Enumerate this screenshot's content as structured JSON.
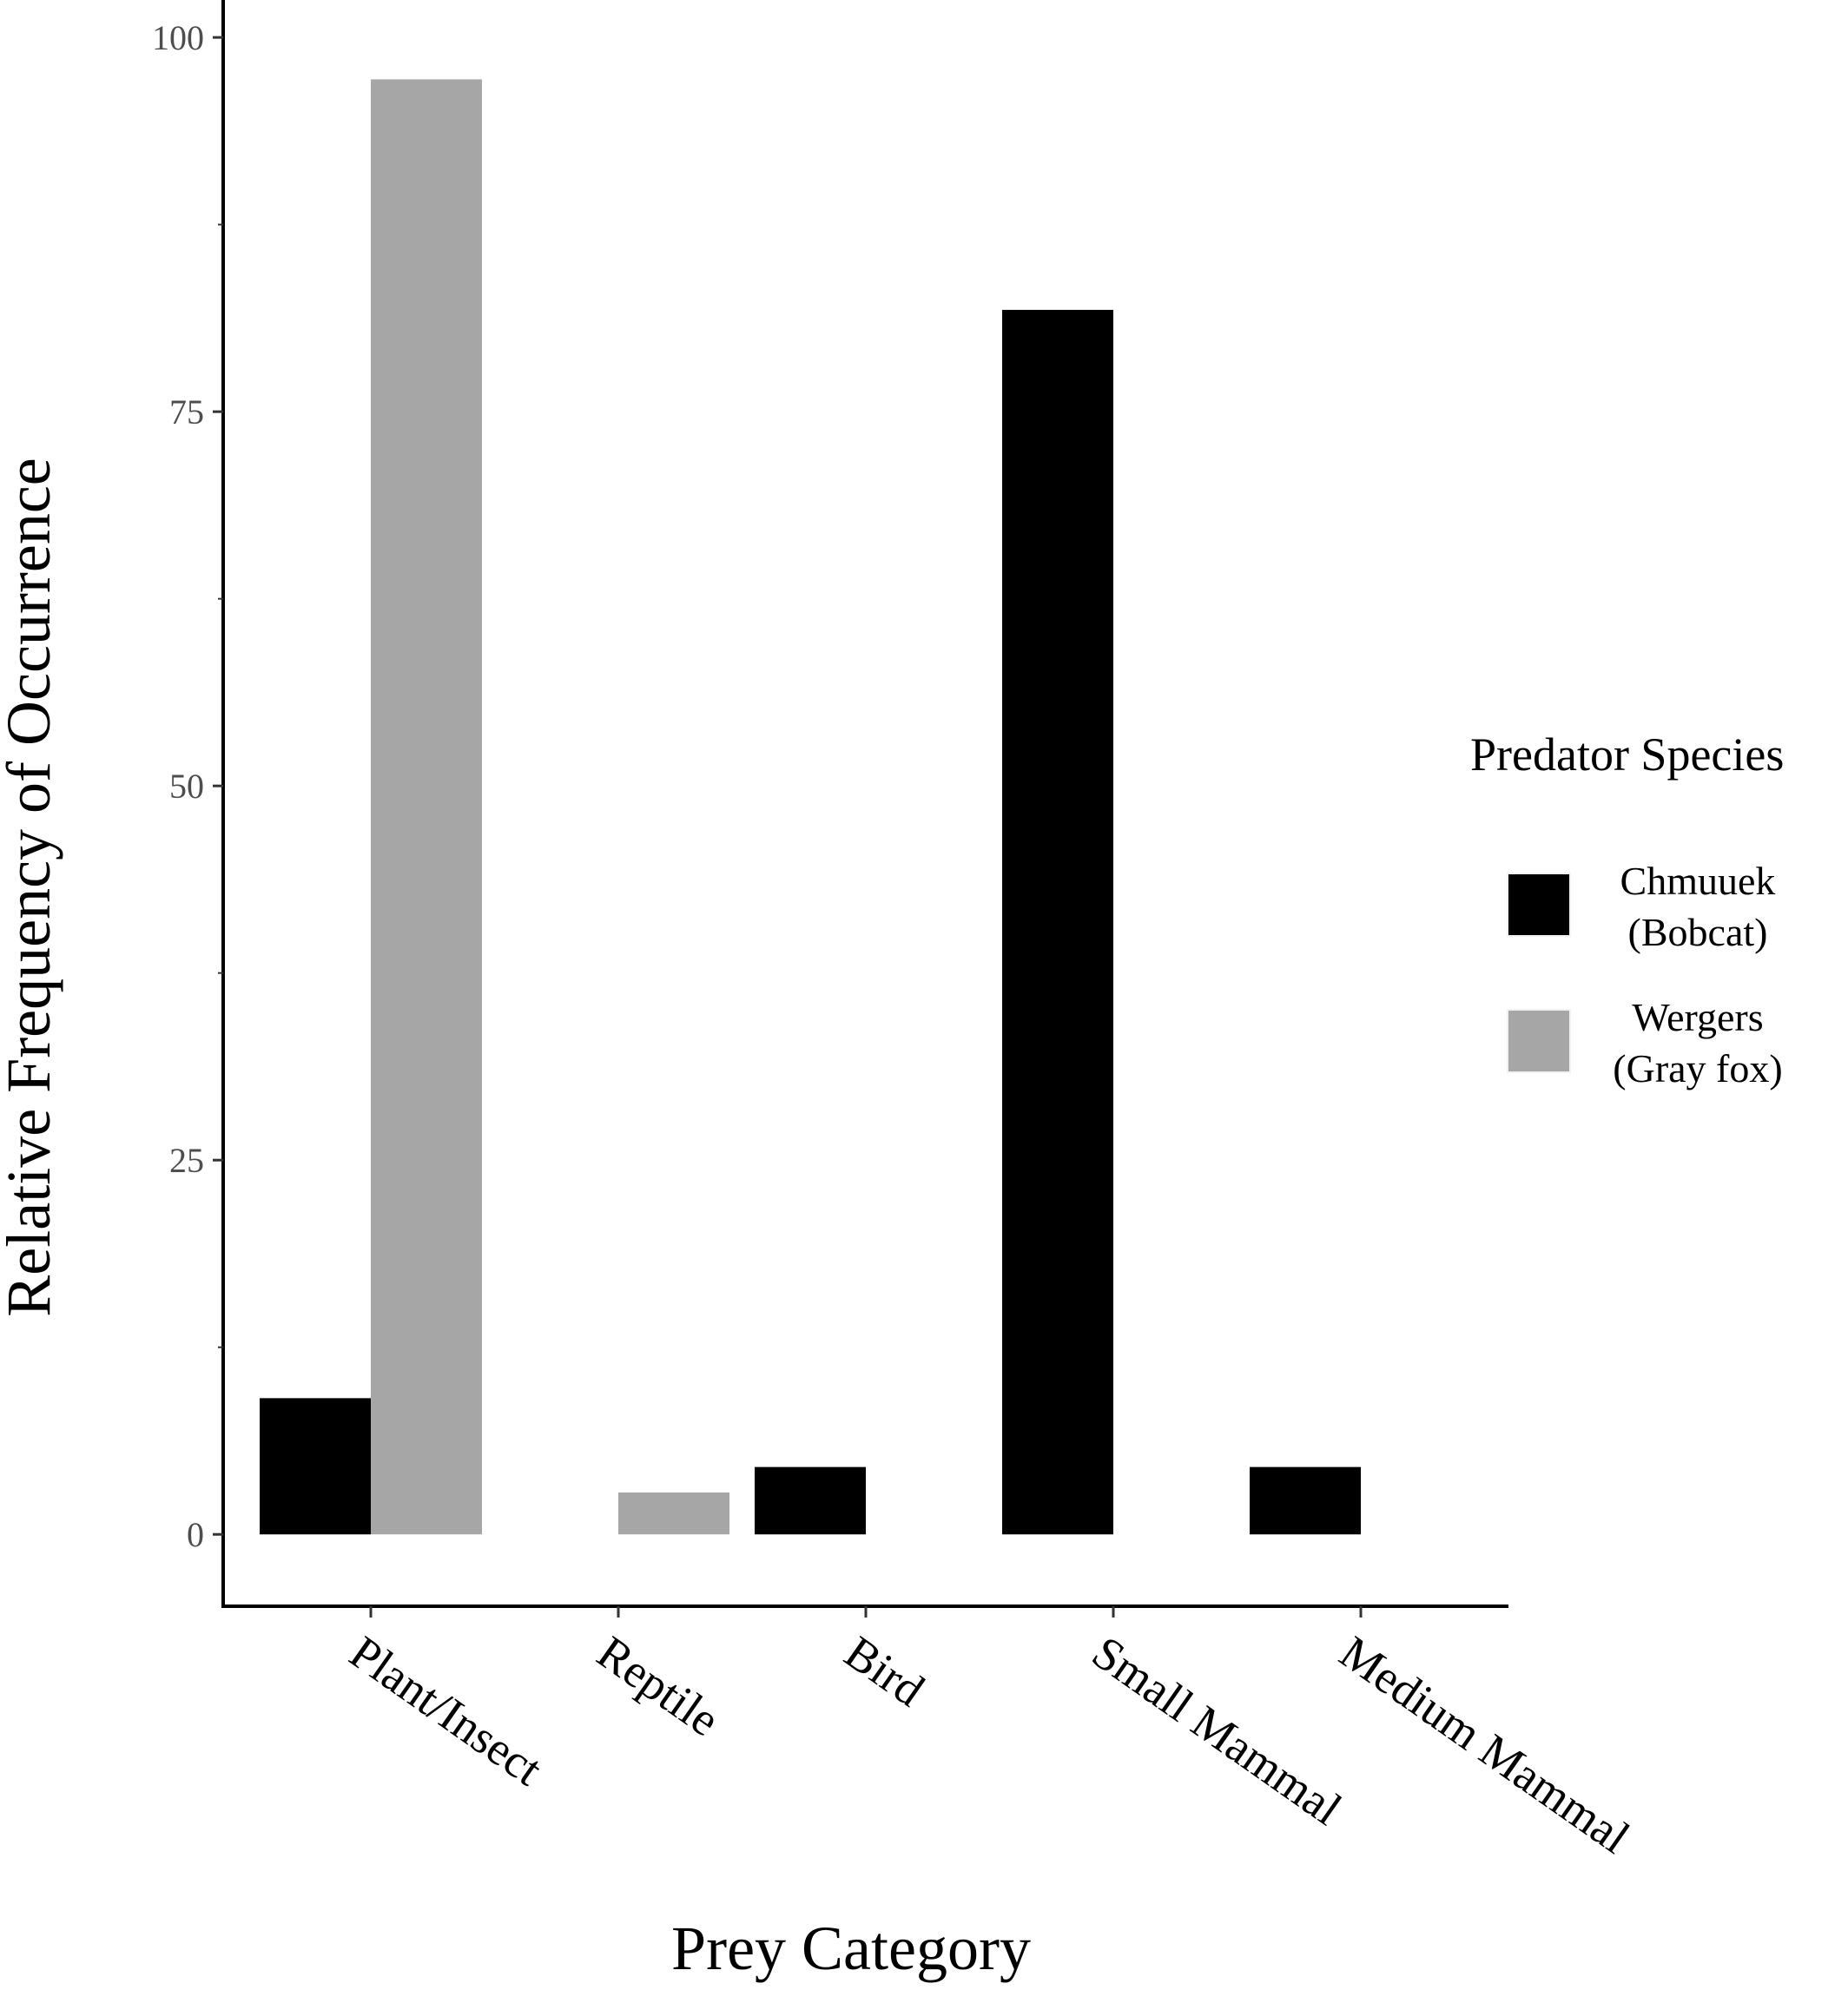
{
  "chart_data": {
    "type": "bar",
    "categories": [
      "Plant/Insect",
      "Reptile",
      "Bird",
      "Small Mammal",
      "Medium Mammal"
    ],
    "series": [
      {
        "name": "Chmuuek\n(Bobcat)",
        "color": "#000000",
        "values": [
          9.1,
          0,
          4.5,
          81.8,
          4.5
        ]
      },
      {
        "name": "Wergers\n(Gray fox)",
        "color": "#a6a6a6",
        "values": [
          97.2,
          2.8,
          0,
          0,
          0
        ]
      }
    ],
    "xlabel": "Prey Category",
    "ylabel": "Relative Frequency of Occurrence",
    "legend_title": "Predator Species",
    "legend_position": "right",
    "ylim": [
      -4.8,
      102.5
    ],
    "yticks": [
      0,
      25,
      50,
      75,
      100
    ],
    "yticks_minor": [
      12.5,
      37.5,
      62.5,
      87.5
    ],
    "grid": false
  }
}
